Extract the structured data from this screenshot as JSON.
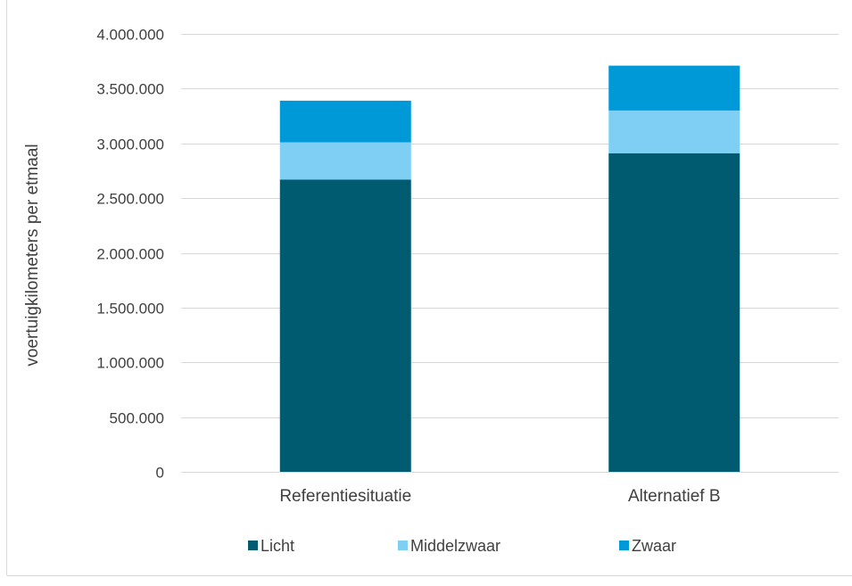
{
  "chart_data": {
    "type": "bar",
    "stacked": true,
    "categories": [
      "Referentiesituatie",
      "Alternatief B"
    ],
    "series": [
      {
        "name": "Licht",
        "values": [
          2670000,
          2910000
        ],
        "color": "#005A70"
      },
      {
        "name": "Middelzwaar",
        "values": [
          340000,
          390000
        ],
        "color": "#7FCFF5"
      },
      {
        "name": "Zwaar",
        "values": [
          380000,
          410000
        ],
        "color": "#0099D8"
      }
    ],
    "title": "",
    "xlabel": "",
    "ylabel": "voertuigkilometers per etmaal",
    "ylim": [
      0,
      4000000
    ],
    "yticks": [
      "0",
      "500.000",
      "1.000.000",
      "1.500.000",
      "2.000.000",
      "2.500.000",
      "3.000.000",
      "3.500.000",
      "4.000.000"
    ],
    "grid": true,
    "legend_position": "bottom"
  }
}
